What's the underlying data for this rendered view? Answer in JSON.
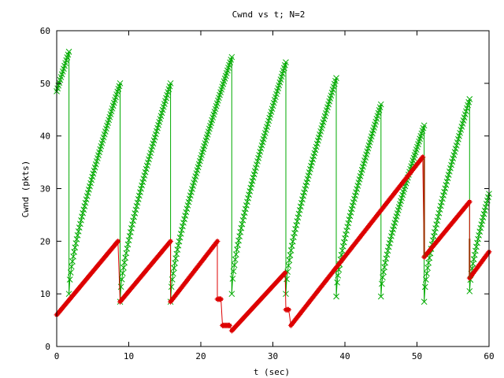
{
  "chart_data": {
    "type": "scatter",
    "title": "Cwnd vs t; N=2",
    "xlabel": "t (sec)",
    "ylabel": "Cwnd (pkts)",
    "xlim": [
      0,
      60
    ],
    "ylim": [
      0,
      60
    ],
    "xticks": [
      0,
      10,
      20,
      30,
      40,
      50,
      60
    ],
    "yticks": [
      0,
      10,
      20,
      30,
      40,
      50,
      60
    ],
    "xtick_labels": [
      "0",
      "10",
      "20",
      "30",
      "40",
      "50",
      "60"
    ],
    "ytick_labels": [
      "0",
      "10",
      "20",
      "30",
      "40",
      "50",
      "60"
    ],
    "grid": false,
    "colors": {
      "green_series": "#00aa00",
      "red_series": "#dd0000",
      "brown_drop": "#993300"
    },
    "series": [
      {
        "marker": "x",
        "color": "#00aa00",
        "segments": [
          {
            "x0": 0.0,
            "x1": 1.7,
            "y0": 48.5,
            "y1": 56,
            "shape": "linear"
          },
          {
            "x0": 1.7,
            "x1": 8.8,
            "y0": 10,
            "y1": 50,
            "shape": "concave"
          },
          {
            "x0": 8.8,
            "x1": 15.8,
            "y0": 8.5,
            "y1": 50,
            "shape": "concave"
          },
          {
            "x0": 15.8,
            "x1": 24.3,
            "y0": 8.5,
            "y1": 55,
            "shape": "concave"
          },
          {
            "x0": 24.3,
            "x1": 31.8,
            "y0": 10,
            "y1": 54,
            "shape": "concave"
          },
          {
            "x0": 31.8,
            "x1": 38.8,
            "y0": 10,
            "y1": 51,
            "shape": "concave"
          },
          {
            "x0": 38.8,
            "x1": 45.0,
            "y0": 9.5,
            "y1": 46,
            "shape": "concave"
          },
          {
            "x0": 45.0,
            "x1": 51.0,
            "y0": 9.5,
            "y1": 42,
            "shape": "concave"
          },
          {
            "x0": 51.0,
            "x1": 57.3,
            "y0": 8.5,
            "y1": 47,
            "shape": "concave"
          },
          {
            "x0": 57.3,
            "x1": 60.0,
            "y0": 10.5,
            "y1": 29,
            "shape": "concave"
          }
        ]
      },
      {
        "marker": "plus",
        "color": "#dd0000",
        "segments": [
          {
            "x0": 0.0,
            "x1": 8.5,
            "y0": 6,
            "y1": 20,
            "shape": "linear"
          },
          {
            "x0": 8.8,
            "x1": 15.8,
            "y0": 8.5,
            "y1": 20,
            "shape": "linear"
          },
          {
            "x0": 15.8,
            "x1": 22.3,
            "y0": 8.5,
            "y1": 20,
            "shape": "linear"
          },
          {
            "x0": 22.3,
            "x1": 22.8,
            "y0": 9,
            "y1": 9,
            "shape": "linear"
          },
          {
            "x0": 23.0,
            "x1": 24.0,
            "y0": 4,
            "y1": 4,
            "shape": "linear"
          },
          {
            "x0": 24.3,
            "x1": 31.7,
            "y0": 3,
            "y1": 14,
            "shape": "linear"
          },
          {
            "x0": 31.8,
            "x1": 32.2,
            "y0": 7,
            "y1": 7,
            "shape": "linear"
          },
          {
            "x0": 32.5,
            "x1": 50.8,
            "y0": 4,
            "y1": 36,
            "shape": "linear"
          },
          {
            "x0": 51.0,
            "x1": 57.3,
            "y0": 17,
            "y1": 27.5,
            "shape": "linear"
          },
          {
            "x0": 57.3,
            "x1": 60.0,
            "y0": 13,
            "y1": 18,
            "shape": "linear"
          }
        ]
      }
    ]
  }
}
